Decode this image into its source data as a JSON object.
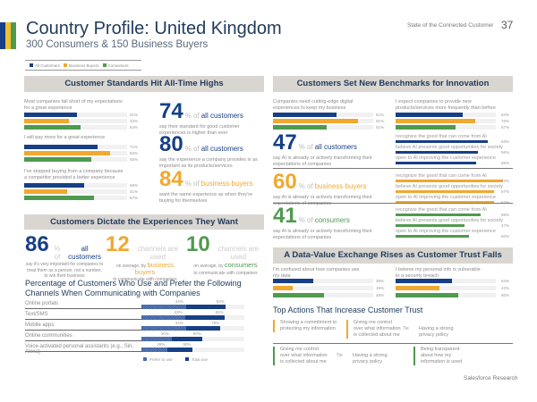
{
  "colors": {
    "all": "#173f86",
    "business": "#f0a830",
    "consumers": "#4f9a4f",
    "band": "#d9d5d0"
  },
  "header": {
    "title": "Country Profile: United Kingdom",
    "subtitle": "300 Consumers & 150 Business Buyers",
    "report": "State of the Connected Customer",
    "page": "37"
  },
  "legend": [
    "All Customers",
    "Business Buyers",
    "Consumers"
  ],
  "sections": {
    "standards": "Customer Standards Hit All-Time Highs",
    "innovation": "Customers Set New Benchmarks for Innovation",
    "dictate": "Customers Dictate the Experiences They Want",
    "trust": "A Data-Value Exchange Rises as Customer Trust Falls"
  },
  "standards_bars": [
    {
      "q": "Most companies fall short of my expectations for a great experience",
      "values": [
        51,
        43,
        54
      ]
    },
    {
      "q": "I will pay more for a great experience",
      "values": [
        71,
        83,
        65
      ]
    },
    {
      "q": "I've stopped buying from a company because a competitor provided a better experience",
      "values": [
        58,
        41,
        67
      ]
    }
  ],
  "standards_stats": [
    {
      "num": "74",
      "of": "% of",
      "who": "all customers",
      "desc": "say their standard for good customer experiences is higher than ever",
      "color": "all"
    },
    {
      "num": "80",
      "of": "% of",
      "who": "all customers",
      "desc": "say the experience a company provides is as important as its products/services",
      "color": "all"
    },
    {
      "num": "84",
      "of": "% of",
      "who": "business buyers",
      "desc": "want the same experience as when they're buying for themselves",
      "color": "business"
    }
  ],
  "innovation_bars": [
    {
      "q": "Companies need cutting-edge digital experiences to keep my business",
      "values": [
        61,
        81,
        51
      ]
    },
    {
      "q": "I expect companies to provide new products/services more frequently than before",
      "values": [
        64,
        76,
        57
      ]
    }
  ],
  "ai_stats": [
    {
      "num": "47",
      "of": "% of",
      "who": "all customers",
      "desc": "say AI is already or actively transforming their expectations of companies",
      "color": "all",
      "values": [
        63,
        56,
        55
      ]
    },
    {
      "num": "60",
      "of": "% of",
      "who": "business buyers",
      "desc": "say AI is already or actively transforming their expectations of companies",
      "color": "business",
      "values": [
        73,
        67,
        67
      ]
    },
    {
      "num": "41",
      "of": "% of",
      "who": "consumers",
      "desc": "say AI is already or actively transforming their expectations of companies",
      "color": "consumers",
      "values": [
        58,
        47,
        50
      ]
    }
  ],
  "ai_labels": [
    "recognize the good that can come from AI",
    "believe AI presents good opportunities for society",
    "open to AI improving the customer experience"
  ],
  "dictate_stats": [
    {
      "num": "86",
      "mid": "% of",
      "who": "all customers",
      "desc": "say it's very important for companies to treat them as a person, not a number, to win their business",
      "color": "all"
    },
    {
      "num": "12",
      "mid": "channels are used",
      "pre": "on average, by",
      "who": "business buyers",
      "desc": "to communicate with companies",
      "color": "business"
    },
    {
      "num": "10",
      "mid": "channels are used",
      "pre": "on average, by",
      "who": "consumers",
      "desc": "to communicate with companies",
      "color": "consumers"
    }
  ],
  "channels": {
    "title": "Percentage of Customers Who Use and Prefer the Following Channels When Communicating with Companies",
    "legend": [
      "Prefer to use",
      "Total use"
    ],
    "rows": [
      {
        "label": "Online portals",
        "prefer": 44,
        "total": 83
      },
      {
        "label": "Text/SMS",
        "prefer": 43,
        "total": 82
      },
      {
        "label": "Mobile apps",
        "prefer": 44,
        "total": 78
      },
      {
        "label": "Online communities",
        "prefer": 30,
        "total": 60
      },
      {
        "label": "Voice-activated personal assistants (e.g., Siri, Alexa)",
        "prefer": 26,
        "total": 50
      }
    ]
  },
  "trust_bars": [
    {
      "q": "I'm confused about how companies use my data",
      "values": [
        39,
        19,
        49
      ]
    },
    {
      "q": "I believe my personal info is vulnerable to a security breach",
      "values": [
        54,
        42,
        60
      ]
    }
  ],
  "actions": {
    "title": "Top Actions That Increase Customer Trust",
    "tie": "Tie",
    "business": [
      "Showing a commitment to protecting my information",
      "Giving me control over what information is collected about me",
      "Having a strong privacy policy"
    ],
    "consumers": [
      "Giving me control over what information is collected about me",
      "Having a strong privacy policy",
      "Being transparent about how my information is used"
    ]
  },
  "footer": "Salesforce Research"
}
